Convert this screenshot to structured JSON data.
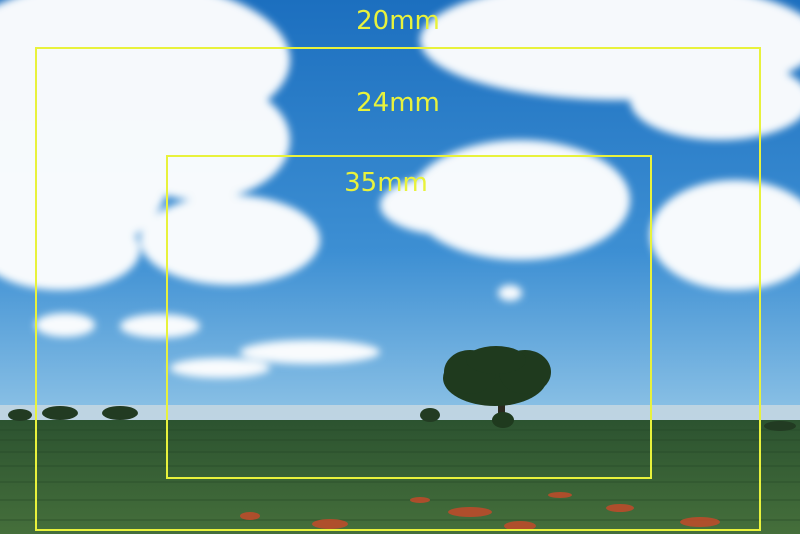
{
  "focal_lengths": [
    {
      "label": "20mm"
    },
    {
      "label": "24mm"
    },
    {
      "label": "35mm"
    }
  ],
  "colors": {
    "frame": "#e8f23c",
    "sky_top": "#1e78c4",
    "sky_bottom": "#6fb2e0",
    "field": "#2f5a34",
    "field_near": "#3f6a3a",
    "flowers": "#c24a2a",
    "tree": "#1f3a1e"
  }
}
